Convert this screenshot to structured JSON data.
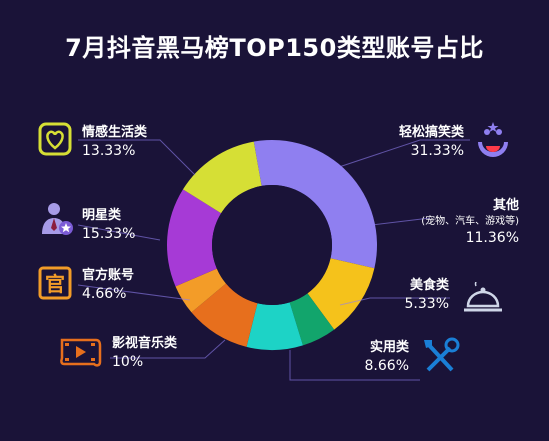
{
  "title": "7月抖音黑马榜TOP150类型账号占比",
  "chart_data": {
    "type": "pie",
    "style": "donut",
    "slices": [
      {
        "label": "轻松搞笑类",
        "value": 31.33,
        "pct_text": "31.33%",
        "color": "#8f7ff0"
      },
      {
        "label": "其他",
        "sub": "(宠物、汽车、游戏等)",
        "value": 11.36,
        "pct_text": "11.36%",
        "color": "#f5c21b"
      },
      {
        "label": "美食类",
        "value": 5.33,
        "pct_text": "5.33%",
        "color": "#12a56c"
      },
      {
        "label": "实用类",
        "value": 8.66,
        "pct_text": "8.66%",
        "color": "#1dd3c6"
      },
      {
        "label": "影视音乐类",
        "value": 10,
        "pct_text": "10%",
        "color": "#e76f1d"
      },
      {
        "label": "官方账号",
        "value": 4.66,
        "pct_text": "4.66%",
        "color": "#f39c28"
      },
      {
        "label": "明星类",
        "value": 15.33,
        "pct_text": "15.33%",
        "color": "#a63ad6"
      },
      {
        "label": "情感生活类",
        "value": 13.33,
        "pct_text": "13.33%",
        "color": "#d6df35"
      }
    ]
  },
  "icons": {
    "emotion": "heart-icon",
    "star": "star-person-icon",
    "official": "official-seal-icon",
    "film": "film-reel-icon",
    "funny": "clown-face-icon",
    "food": "food-cloche-icon",
    "tools": "tools-icon"
  },
  "accent_yellow": "#f5c21b"
}
